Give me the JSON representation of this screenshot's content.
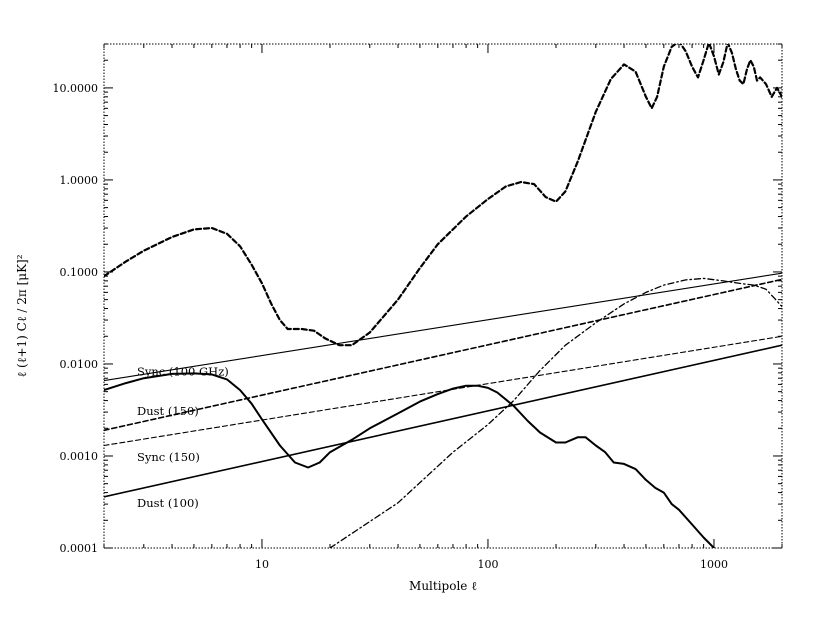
{
  "chart_data": {
    "type": "line",
    "title": "",
    "xlabel": "Multipole  ℓ",
    "ylabel": "ℓ (ℓ+1) Cℓ / 2π     [μK]²",
    "xscale": "log",
    "yscale": "log",
    "xlim": [
      2,
      2000
    ],
    "ylim": [
      0.0001,
      30
    ],
    "grid": false,
    "legend": "none",
    "x_ticks": [
      {
        "value": 10,
        "label": "10"
      },
      {
        "value": 100,
        "label": "100"
      },
      {
        "value": 1000,
        "label": "1000"
      }
    ],
    "y_ticks": [
      {
        "value": 0.0001,
        "label": "0.0001"
      },
      {
        "value": 0.001,
        "label": "0.0010"
      },
      {
        "value": 0.01,
        "label": "0.0100"
      },
      {
        "value": 0.1,
        "label": "0.1000"
      },
      {
        "value": 1,
        "label": "1.0000"
      },
      {
        "value": 10,
        "label": "10.0000"
      }
    ],
    "series": [
      {
        "style": "dashed-thick",
        "points": [
          [
            2,
            0.09
          ],
          [
            2.5,
            0.13
          ],
          [
            3,
            0.17
          ],
          [
            4,
            0.24
          ],
          [
            5,
            0.29
          ],
          [
            6,
            0.3
          ],
          [
            7,
            0.26
          ],
          [
            8,
            0.19
          ],
          [
            9,
            0.12
          ],
          [
            10,
            0.075
          ],
          [
            11,
            0.045
          ],
          [
            12,
            0.03
          ],
          [
            13,
            0.024
          ],
          [
            15,
            0.024
          ],
          [
            17,
            0.023
          ],
          [
            19,
            0.019
          ],
          [
            22,
            0.016
          ],
          [
            25,
            0.016
          ],
          [
            30,
            0.022
          ],
          [
            40,
            0.05
          ],
          [
            50,
            0.11
          ],
          [
            60,
            0.2
          ],
          [
            80,
            0.4
          ],
          [
            100,
            0.62
          ],
          [
            120,
            0.85
          ],
          [
            140,
            0.95
          ],
          [
            160,
            0.9
          ],
          [
            180,
            0.65
          ],
          [
            200,
            0.58
          ],
          [
            220,
            0.75
          ],
          [
            250,
            1.6
          ],
          [
            300,
            5.5
          ],
          [
            350,
            12.5
          ],
          [
            400,
            18
          ],
          [
            450,
            15
          ],
          [
            500,
            8
          ],
          [
            530,
            6
          ],
          [
            560,
            8
          ],
          [
            600,
            17
          ],
          [
            650,
            28
          ],
          [
            700,
            32
          ],
          [
            750,
            25
          ],
          [
            800,
            17
          ],
          [
            850,
            13
          ],
          [
            900,
            20
          ],
          [
            950,
            31
          ],
          [
            1000,
            22
          ],
          [
            1050,
            14
          ],
          [
            1100,
            19
          ],
          [
            1150,
            31
          ],
          [
            1200,
            24
          ],
          [
            1250,
            16
          ],
          [
            1300,
            12
          ],
          [
            1350,
            11
          ],
          [
            1400,
            16
          ],
          [
            1450,
            20
          ],
          [
            1500,
            17
          ],
          [
            1550,
            12
          ],
          [
            1600,
            13
          ],
          [
            1700,
            11
          ],
          [
            1800,
            8
          ],
          [
            1900,
            10
          ],
          [
            2000,
            8
          ]
        ]
      },
      {
        "style": "solid-thick",
        "points": [
          [
            2,
            0.0052
          ],
          [
            2.5,
            0.0062
          ],
          [
            3,
            0.007
          ],
          [
            4,
            0.0078
          ],
          [
            5,
            0.0079
          ],
          [
            6,
            0.0077
          ],
          [
            7,
            0.0068
          ],
          [
            8,
            0.0052
          ],
          [
            9,
            0.0037
          ],
          [
            10,
            0.0025
          ],
          [
            12,
            0.0013
          ],
          [
            14,
            0.00085
          ],
          [
            16,
            0.00075
          ],
          [
            18,
            0.00085
          ],
          [
            20,
            0.0011
          ],
          [
            25,
            0.0015
          ],
          [
            30,
            0.002
          ],
          [
            40,
            0.0029
          ],
          [
            50,
            0.0039
          ],
          [
            60,
            0.0047
          ],
          [
            70,
            0.0054
          ],
          [
            80,
            0.0058
          ],
          [
            90,
            0.0058
          ],
          [
            100,
            0.0055
          ],
          [
            110,
            0.0049
          ],
          [
            130,
            0.0035
          ],
          [
            150,
            0.0024
          ],
          [
            170,
            0.0018
          ],
          [
            200,
            0.0014
          ],
          [
            220,
            0.0014
          ],
          [
            250,
            0.0016
          ],
          [
            270,
            0.0016
          ],
          [
            300,
            0.0013
          ],
          [
            330,
            0.0011
          ],
          [
            360,
            0.00085
          ],
          [
            400,
            0.00082
          ],
          [
            450,
            0.00072
          ],
          [
            500,
            0.00055
          ],
          [
            550,
            0.00045
          ],
          [
            600,
            0.0004
          ],
          [
            650,
            0.0003
          ],
          [
            700,
            0.00026
          ],
          [
            800,
            0.00018
          ],
          [
            900,
            0.00013
          ],
          [
            1000,
            0.0001
          ]
        ]
      },
      {
        "name": "Sync (100 GHz)",
        "style": "solid-thin",
        "points": [
          [
            2,
            0.0066
          ],
          [
            2000,
            0.097
          ]
        ]
      },
      {
        "style": "dashed-medium",
        "points": [
          [
            2,
            0.0019
          ],
          [
            2000,
            0.083
          ]
        ]
      },
      {
        "style": "dashed-thin",
        "points": [
          [
            2,
            0.0013
          ],
          [
            2000,
            0.02
          ]
        ]
      },
      {
        "style": "solid-medium",
        "points": [
          [
            2,
            0.00036
          ],
          [
            2000,
            0.016
          ]
        ]
      },
      {
        "style": "dash-dot",
        "points": [
          [
            20,
            0.0001
          ],
          [
            40,
            0.00031
          ],
          [
            70,
            0.0011
          ],
          [
            100,
            0.0022
          ],
          [
            130,
            0.004
          ],
          [
            170,
            0.0085
          ],
          [
            220,
            0.016
          ],
          [
            300,
            0.028
          ],
          [
            400,
            0.045
          ],
          [
            500,
            0.06
          ],
          [
            600,
            0.072
          ],
          [
            750,
            0.082
          ],
          [
            900,
            0.085
          ],
          [
            1100,
            0.08
          ],
          [
            1300,
            0.075
          ],
          [
            1500,
            0.072
          ],
          [
            1700,
            0.065
          ],
          [
            1850,
            0.052
          ],
          [
            2000,
            0.042
          ]
        ]
      }
    ],
    "annotations": [
      {
        "text": "Sync (100 GHz)",
        "x": 2.8,
        "y": 0.0075
      },
      {
        "text": "Dust (150)",
        "x": 2.8,
        "y": 0.0028
      },
      {
        "text": "Sync (150)",
        "x": 2.8,
        "y": 0.00088
      },
      {
        "text": "Dust (100)",
        "x": 2.8,
        "y": 0.00028
      }
    ]
  }
}
